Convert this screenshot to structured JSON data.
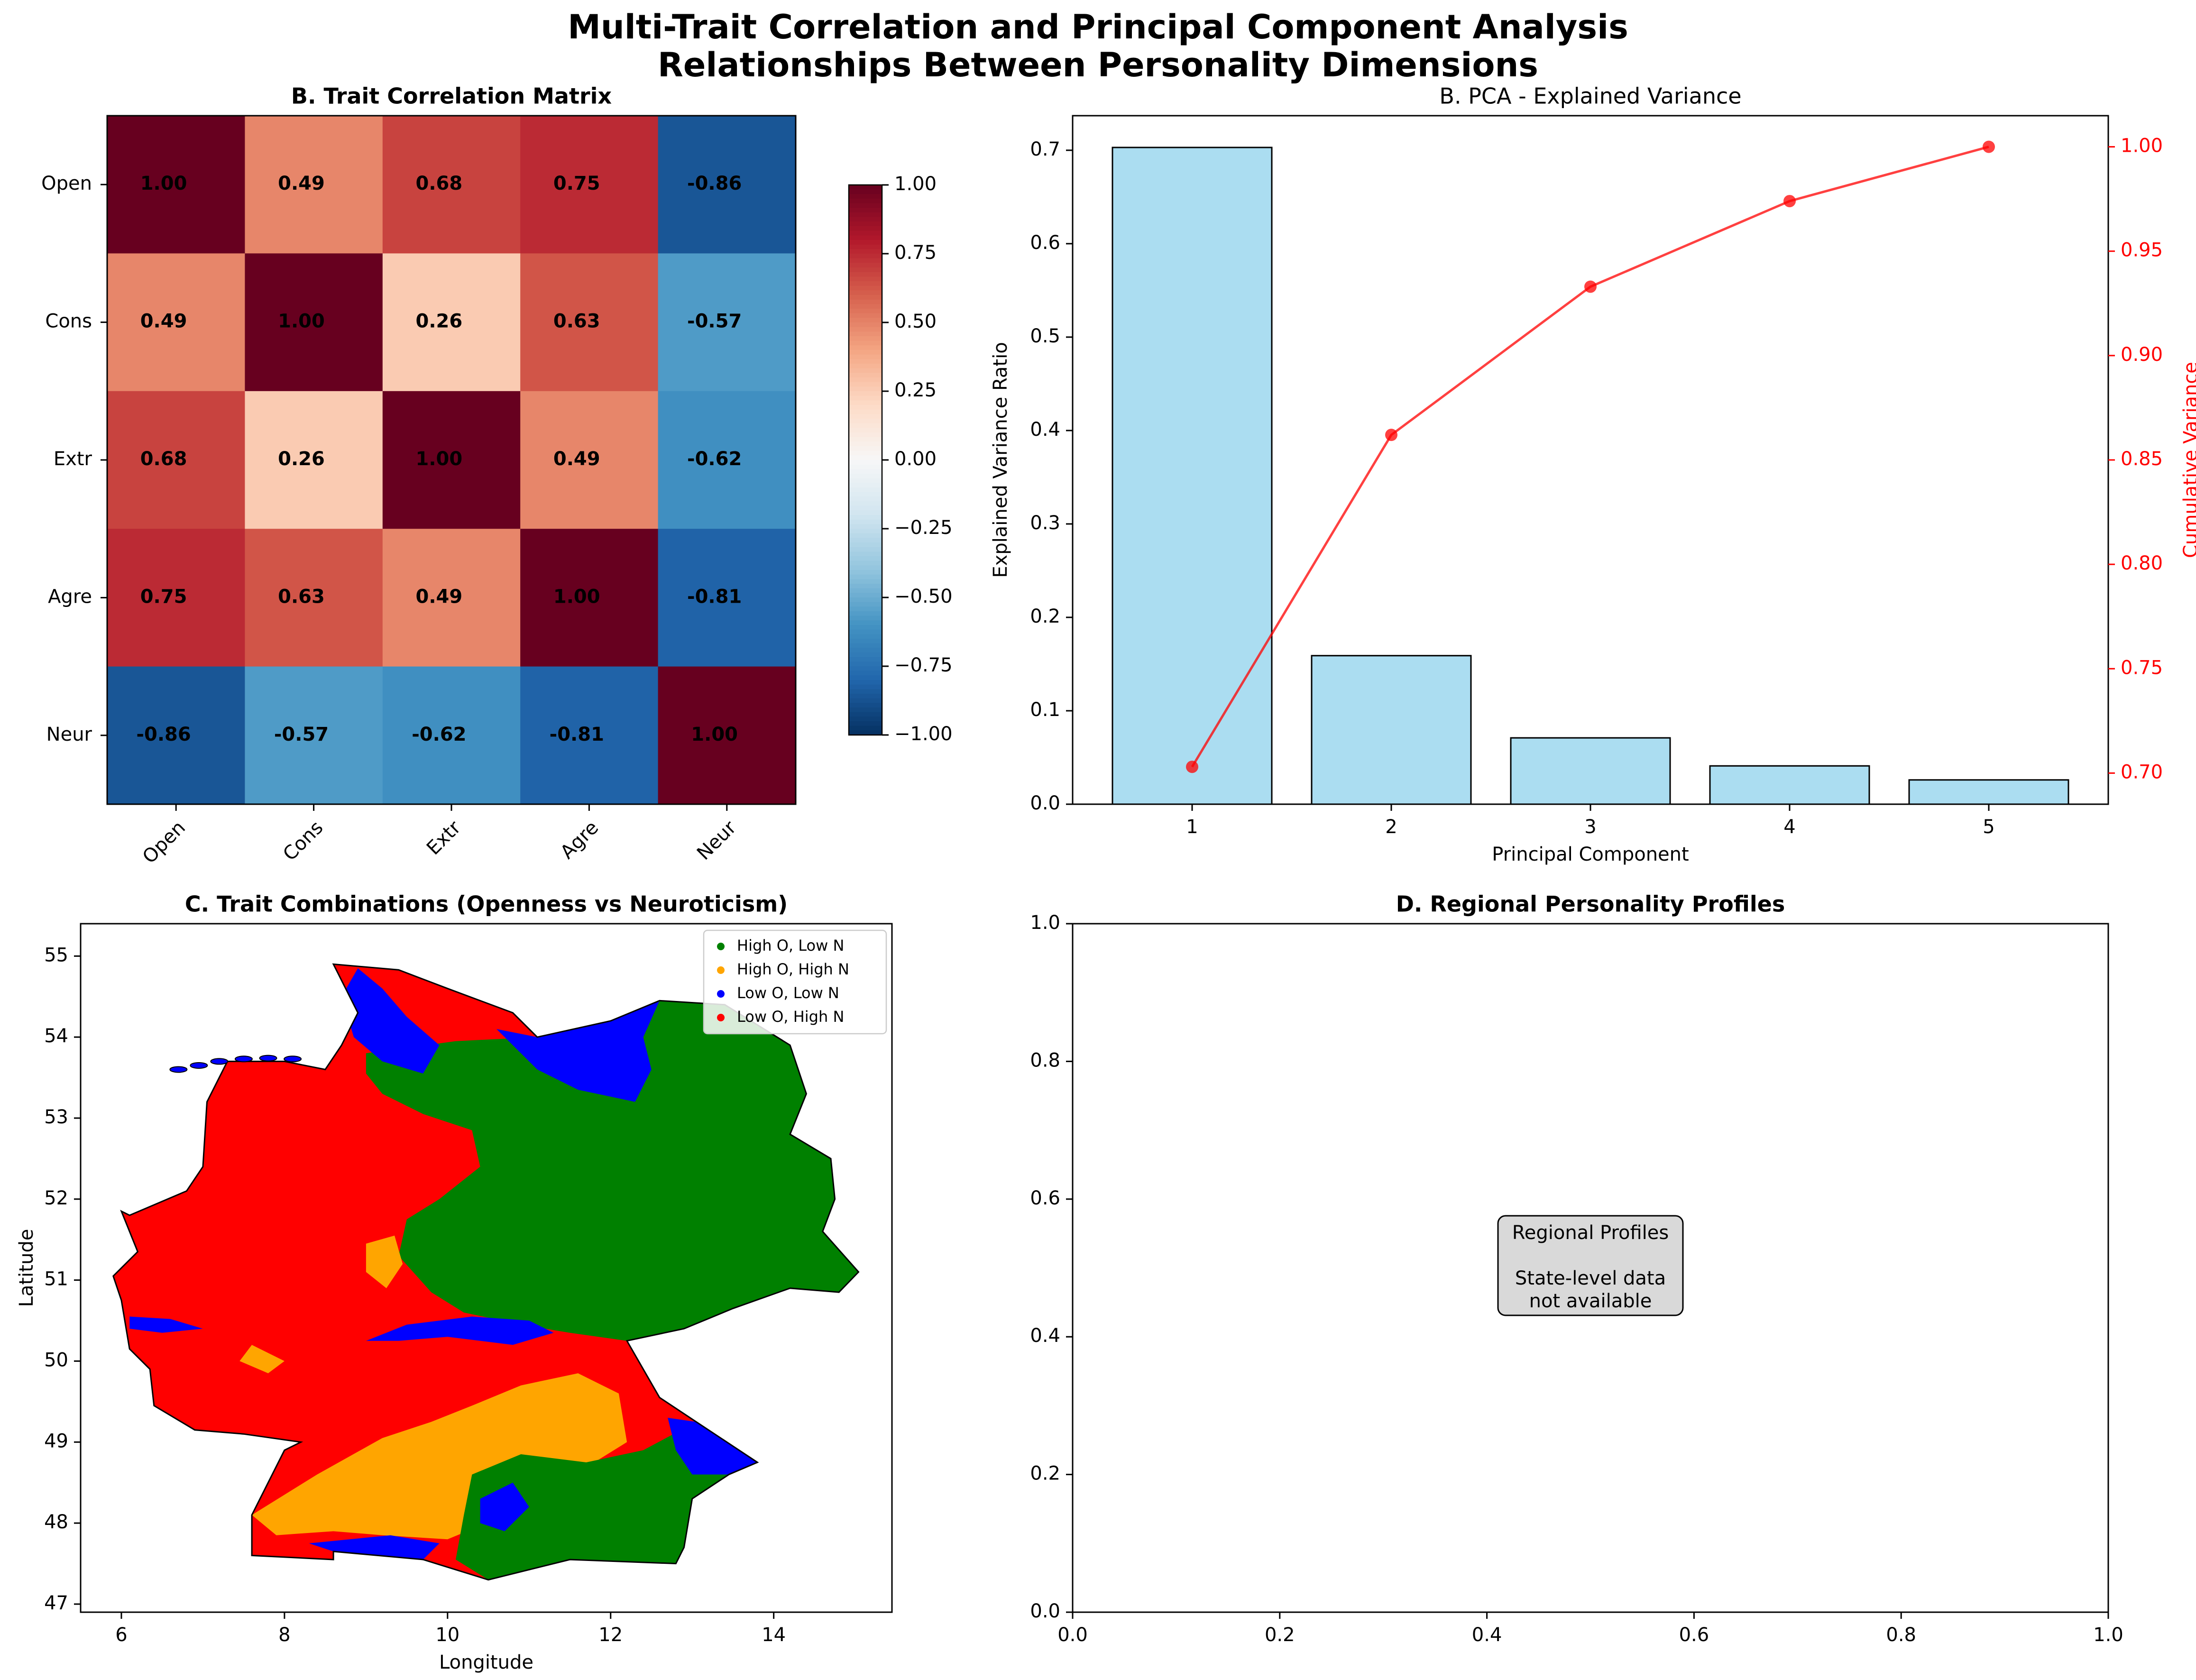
{
  "figure": {
    "title_line1": "Multi-Trait Correlation and Principal Component Analysis",
    "title_line2": "Relationships Between Personality Dimensions"
  },
  "chart_data": [
    {
      "panel": "A",
      "type": "heatmap",
      "title": "B. Trait Correlation Matrix",
      "row_labels": [
        "Open",
        "Cons",
        "Extr",
        "Agre",
        "Neur"
      ],
      "col_labels": [
        "Open",
        "Cons",
        "Extr",
        "Agre",
        "Neur"
      ],
      "values": [
        [
          1.0,
          0.49,
          0.68,
          0.75,
          -0.86
        ],
        [
          0.49,
          1.0,
          0.26,
          0.63,
          -0.57
        ],
        [
          0.68,
          0.26,
          1.0,
          0.49,
          -0.62
        ],
        [
          0.75,
          0.63,
          0.49,
          1.0,
          -0.81
        ],
        [
          -0.86,
          -0.57,
          -0.62,
          -0.81,
          1.0
        ]
      ],
      "colormap": "RdBu_r",
      "vmin": -1.0,
      "vmax": 1.0,
      "colorbar_ticks": [
        "1.00",
        "0.75",
        "0.50",
        "0.25",
        "0.00",
        "−0.25",
        "−0.50",
        "−0.75",
        "−1.00"
      ]
    },
    {
      "panel": "B",
      "type": "bar",
      "title": "B. PCA - Explained Variance",
      "xlabel": "Principal Component",
      "ylabel": "Explained Variance Ratio",
      "y2label": "Cumulative Variance",
      "categories": [
        "1",
        "2",
        "3",
        "4",
        "5"
      ],
      "series": [
        {
          "kind": "bar",
          "values": [
            0.703,
            0.159,
            0.071,
            0.041,
            0.026
          ],
          "color": "#87ceeb"
        },
        {
          "kind": "line",
          "values": [
            0.703,
            0.862,
            0.933,
            0.974,
            1.0
          ],
          "color": "#ff0000",
          "axis": "right"
        }
      ],
      "ylim": [
        0,
        0.737
      ],
      "y2lim": [
        0.6851,
        1.0149
      ],
      "yticks": [
        "0.0",
        "0.1",
        "0.2",
        "0.3",
        "0.4",
        "0.5",
        "0.6",
        "0.7"
      ],
      "y2ticks": [
        "0.70",
        "0.75",
        "0.80",
        "0.85",
        "0.90",
        "0.95",
        "1.00"
      ]
    },
    {
      "panel": "C",
      "type": "scatter",
      "title": "C. Trait Combinations (Openness vs Neuroticism)",
      "xlabel": "Longitude",
      "ylabel": "Latitude",
      "xlim": [
        5.5,
        15.45
      ],
      "ylim": [
        46.9,
        55.4
      ],
      "xticks": [
        "6",
        "8",
        "10",
        "12",
        "14"
      ],
      "yticks": [
        "47",
        "48",
        "49",
        "50",
        "51",
        "52",
        "53",
        "54",
        "55"
      ],
      "legend_position": "upper right",
      "categories": [
        {
          "label": "High O, Low N",
          "color": "#008000"
        },
        {
          "label": "High O, High N",
          "color": "#ffa500"
        },
        {
          "label": "Low O, Low N",
          "color": "#0000ff"
        },
        {
          "label": "Low O, High N",
          "color": "#ff0000"
        }
      ],
      "outline": [
        [
          6.1,
          51.8
        ],
        [
          6.8,
          52.1
        ],
        [
          7.0,
          52.4
        ],
        [
          7.05,
          53.2
        ],
        [
          7.3,
          53.7
        ],
        [
          8.0,
          53.7
        ],
        [
          8.5,
          53.6
        ],
        [
          8.7,
          53.9
        ],
        [
          8.9,
          54.3
        ],
        [
          8.6,
          54.9
        ],
        [
          9.4,
          54.83
        ],
        [
          10.0,
          54.6
        ],
        [
          10.8,
          54.3
        ],
        [
          11.1,
          54.0
        ],
        [
          12.0,
          54.2
        ],
        [
          12.6,
          54.45
        ],
        [
          13.4,
          54.4
        ],
        [
          14.2,
          53.9
        ],
        [
          14.4,
          53.3
        ],
        [
          14.2,
          52.8
        ],
        [
          14.7,
          52.5
        ],
        [
          14.75,
          52.0
        ],
        [
          14.6,
          51.6
        ],
        [
          15.04,
          51.1
        ],
        [
          14.8,
          50.85
        ],
        [
          14.2,
          50.9
        ],
        [
          13.5,
          50.65
        ],
        [
          12.9,
          50.4
        ],
        [
          12.2,
          50.25
        ],
        [
          12.4,
          49.9
        ],
        [
          12.6,
          49.55
        ],
        [
          13.05,
          49.25
        ],
        [
          13.8,
          48.75
        ],
        [
          13.45,
          48.6
        ],
        [
          13.0,
          48.3
        ],
        [
          12.9,
          47.7
        ],
        [
          12.8,
          47.5
        ],
        [
          11.5,
          47.55
        ],
        [
          10.5,
          47.3
        ],
        [
          9.7,
          47.55
        ],
        [
          8.6,
          47.65
        ],
        [
          8.6,
          47.55
        ],
        [
          7.6,
          47.6
        ],
        [
          7.6,
          48.1
        ],
        [
          8.0,
          48.9
        ],
        [
          8.2,
          49.0
        ],
        [
          7.5,
          49.1
        ],
        [
          6.9,
          49.15
        ],
        [
          6.4,
          49.45
        ],
        [
          6.35,
          49.9
        ],
        [
          6.1,
          50.15
        ],
        [
          6.0,
          50.75
        ],
        [
          5.9,
          51.05
        ],
        [
          6.2,
          51.35
        ],
        [
          6.0,
          51.85
        ]
      ],
      "regions": [
        {
          "cat": 0,
          "poly": [
            [
              9.0,
              53.8
            ],
            [
              10.1,
              53.95
            ],
            [
              11.1,
              54.0
            ],
            [
              12.0,
              54.2
            ],
            [
              12.6,
              54.45
            ],
            [
              13.4,
              54.4
            ],
            [
              14.2,
              53.9
            ],
            [
              14.4,
              53.3
            ],
            [
              14.2,
              52.8
            ],
            [
              14.7,
              52.5
            ],
            [
              14.75,
              52.0
            ],
            [
              14.6,
              51.6
            ],
            [
              15.04,
              51.1
            ],
            [
              14.8,
              50.85
            ],
            [
              14.2,
              50.9
            ],
            [
              13.5,
              50.65
            ],
            [
              12.9,
              50.4
            ],
            [
              12.2,
              50.25
            ],
            [
              11.5,
              50.35
            ],
            [
              10.9,
              50.45
            ],
            [
              10.2,
              50.6
            ],
            [
              9.8,
              50.85
            ],
            [
              9.4,
              51.3
            ],
            [
              9.5,
              51.75
            ],
            [
              9.9,
              52.0
            ],
            [
              10.4,
              52.4
            ],
            [
              10.3,
              52.85
            ],
            [
              9.7,
              53.05
            ],
            [
              9.2,
              53.3
            ],
            [
              9.0,
              53.55
            ]
          ]
        },
        {
          "cat": 2,
          "poly": [
            [
              10.6,
              54.1
            ],
            [
              11.1,
              53.6
            ],
            [
              11.6,
              53.35
            ],
            [
              12.3,
              53.2
            ],
            [
              12.5,
              53.6
            ],
            [
              12.4,
              54.0
            ],
            [
              12.6,
              54.45
            ],
            [
              12.0,
              54.2
            ],
            [
              11.1,
              54.0
            ]
          ]
        },
        {
          "cat": 2,
          "poly": [
            [
              8.7,
              54.5
            ],
            [
              8.85,
              54.0
            ],
            [
              9.2,
              53.7
            ],
            [
              9.7,
              53.55
            ],
            [
              9.9,
              53.9
            ],
            [
              9.5,
              54.25
            ],
            [
              9.2,
              54.6
            ],
            [
              8.9,
              54.85
            ]
          ]
        },
        {
          "cat": 1,
          "poly": [
            [
              7.6,
              48.1
            ],
            [
              8.4,
              48.6
            ],
            [
              9.2,
              49.05
            ],
            [
              9.8,
              49.25
            ],
            [
              10.3,
              49.45
            ],
            [
              10.9,
              49.7
            ],
            [
              11.6,
              49.85
            ],
            [
              12.1,
              49.6
            ],
            [
              12.2,
              49.0
            ],
            [
              11.8,
              48.75
            ],
            [
              11.2,
              48.5
            ],
            [
              10.6,
              48.05
            ],
            [
              10.0,
              47.8
            ],
            [
              9.2,
              47.85
            ],
            [
              8.6,
              47.9
            ],
            [
              7.9,
              47.85
            ]
          ]
        },
        {
          "cat": 0,
          "poly": [
            [
              10.3,
              48.6
            ],
            [
              10.9,
              48.85
            ],
            [
              11.7,
              48.75
            ],
            [
              12.4,
              48.9
            ],
            [
              13.05,
              49.25
            ],
            [
              13.8,
              48.75
            ],
            [
              13.45,
              48.6
            ],
            [
              13.0,
              48.3
            ],
            [
              12.9,
              47.7
            ],
            [
              12.8,
              47.5
            ],
            [
              11.5,
              47.55
            ],
            [
              10.5,
              47.3
            ],
            [
              10.1,
              47.55
            ],
            [
              10.2,
              48.1
            ]
          ]
        },
        {
          "cat": 2,
          "poly": [
            [
              12.7,
              49.3
            ],
            [
              13.05,
              49.25
            ],
            [
              13.8,
              48.75
            ],
            [
              13.45,
              48.6
            ],
            [
              13.0,
              48.6
            ],
            [
              12.8,
              48.9
            ]
          ]
        },
        {
          "cat": 2,
          "poly": [
            [
              10.4,
              48.3
            ],
            [
              10.8,
              48.5
            ],
            [
              11.0,
              48.2
            ],
            [
              10.7,
              47.9
            ],
            [
              10.4,
              48.0
            ]
          ]
        },
        {
          "cat": 2,
          "poly": [
            [
              8.3,
              47.75
            ],
            [
              9.3,
              47.85
            ],
            [
              9.9,
              47.75
            ],
            [
              9.7,
              47.55
            ],
            [
              8.6,
              47.65
            ]
          ]
        },
        {
          "cat": 2,
          "poly": [
            [
              9.0,
              50.25
            ],
            [
              9.5,
              50.45
            ],
            [
              10.3,
              50.55
            ],
            [
              11.0,
              50.5
            ],
            [
              11.3,
              50.35
            ],
            [
              10.8,
              50.2
            ],
            [
              10.0,
              50.3
            ],
            [
              9.4,
              50.25
            ]
          ]
        },
        {
          "cat": 2,
          "poly": [
            [
              6.1,
              50.55
            ],
            [
              6.6,
              50.52
            ],
            [
              7.0,
              50.4
            ],
            [
              6.5,
              50.35
            ],
            [
              6.1,
              50.4
            ]
          ]
        },
        {
          "cat": 1,
          "poly": [
            [
              9.0,
              51.45
            ],
            [
              9.35,
              51.55
            ],
            [
              9.45,
              51.2
            ],
            [
              9.25,
              50.9
            ],
            [
              9.0,
              51.1
            ]
          ]
        },
        {
          "cat": 1,
          "poly": [
            [
              7.6,
              50.2
            ],
            [
              8.0,
              50.0
            ],
            [
              7.8,
              49.85
            ],
            [
              7.45,
              50.0
            ]
          ]
        }
      ],
      "islands": [
        [
          6.7,
          53.6
        ],
        [
          6.95,
          53.65
        ],
        [
          7.2,
          53.7
        ],
        [
          7.5,
          53.73
        ],
        [
          7.8,
          53.74
        ],
        [
          8.1,
          53.73
        ]
      ]
    },
    {
      "panel": "D",
      "type": "table",
      "title": "D. Regional Personality Profiles",
      "xlim": [
        0,
        1
      ],
      "ylim": [
        0,
        1
      ],
      "xticks": [
        "0.0",
        "0.2",
        "0.4",
        "0.6",
        "0.8",
        "1.0"
      ],
      "yticks": [
        "0.0",
        "0.2",
        "0.4",
        "0.6",
        "0.8",
        "1.0"
      ],
      "note_lines": [
        "Regional Profiles",
        "",
        "State-level data",
        "not available"
      ]
    }
  ]
}
